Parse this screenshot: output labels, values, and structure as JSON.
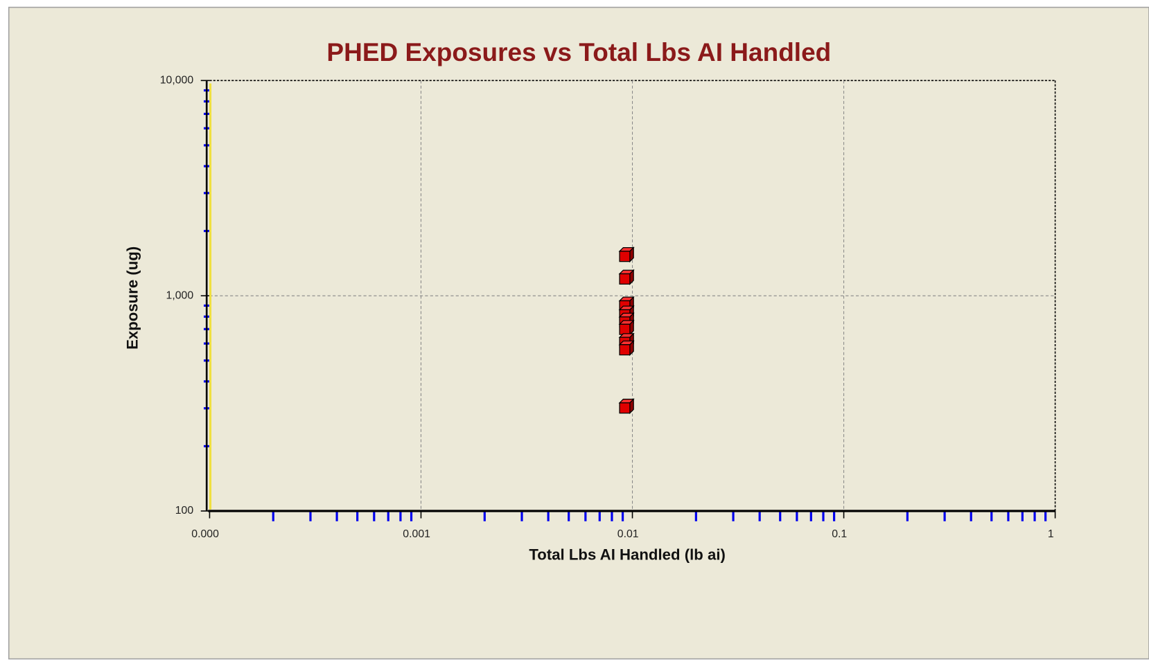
{
  "chart_data": {
    "type": "scatter",
    "title": "PHED Exposures vs Total Lbs AI Handled",
    "xlabel": "Total Lbs AI Handled (lb ai)",
    "ylabel": "Exposure (ug)",
    "x": [
      0.0092,
      0.0092,
      0.0092,
      0.0092,
      0.0092,
      0.0092,
      0.0092,
      0.0092,
      0.0092
    ],
    "series": [
      {
        "color": "#e00000",
        "values": [
          1524,
          1197,
          897,
          815,
          755,
          698,
          607,
          561,
          301
        ]
      }
    ],
    "xscale": "log",
    "yscale": "log",
    "xlim": [
      0.0001,
      1
    ],
    "ylim": [
      100,
      10000
    ],
    "xticks": [
      {
        "value": 0.0001,
        "label": "0.000"
      },
      0.001,
      0.01,
      0.1,
      1
    ],
    "yticks": [
      100,
      {
        "value": 1000,
        "label": "1,000"
      },
      {
        "value": 10000,
        "label": "10,000"
      }
    ],
    "grid": true
  }
}
